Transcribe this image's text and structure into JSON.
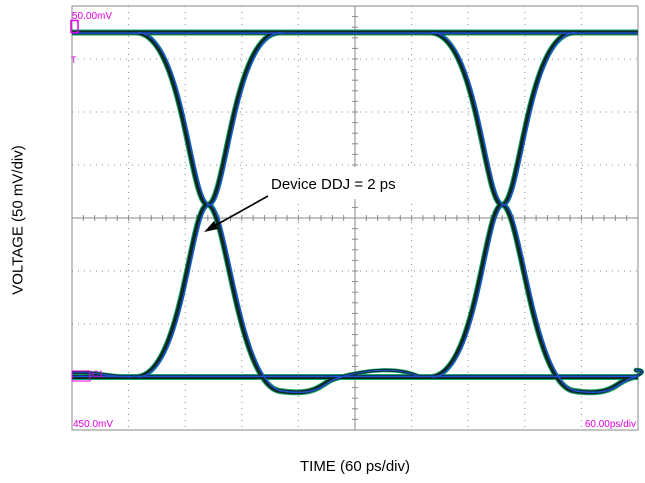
{
  "chart_data": {
    "type": "line",
    "subtype": "eye-diagram",
    "xlabel": "TIME (60 ps/div)",
    "ylabel": "VOLTAGE (50 mV/div)",
    "divisions": {
      "x": 10,
      "y": 8
    },
    "grid": true,
    "screen_labels": {
      "top_left": "50.00mV",
      "bottom_left": "450.0mV",
      "bottom_right": "60.00ps/div",
      "marker_top": "T",
      "marker_ch": "C1"
    },
    "annotation": {
      "text": "Device DDJ = 2 ps"
    },
    "levels": {
      "high_div": 0.5,
      "low_div": 7.0
    },
    "crossings_div": [
      2.4,
      7.6
    ],
    "colors": {
      "grid": "#8a8a8a",
      "trace_dark": "#0a2a20",
      "trace_green": "#1aa36a",
      "trace_blue": "#1f4fd8",
      "screen_text": "#e000e0"
    }
  }
}
